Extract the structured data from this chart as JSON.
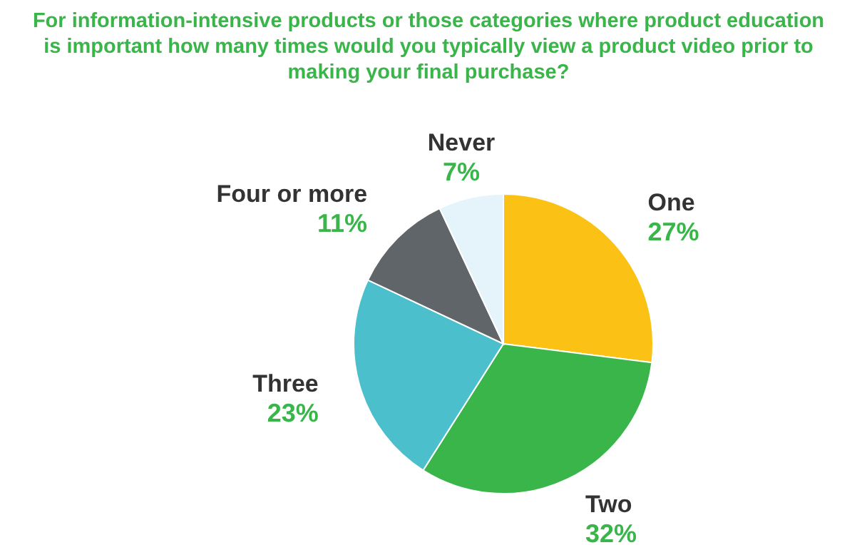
{
  "chart_data": {
    "type": "pie",
    "title": "For information-intensive products or those categories where product education is important how many times would you typically view a product video prior to making your final purchase?",
    "categories": [
      "One",
      "Two",
      "Three",
      "Four or more",
      "Never"
    ],
    "values": [
      27,
      32,
      23,
      11,
      7
    ],
    "value_labels": [
      "27%",
      "32%",
      "23%",
      "11%",
      "7%"
    ],
    "colors": [
      "#fbc115",
      "#39b54a",
      "#4bbfcb",
      "#5f6568",
      "#e5f3fb"
    ],
    "legend": false
  }
}
